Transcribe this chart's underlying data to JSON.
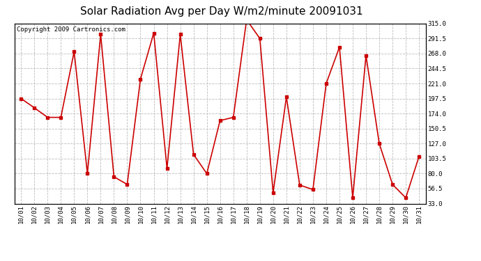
{
  "title": "Solar Radiation Avg per Day W/m2/minute 20091031",
  "copyright": "Copyright 2009 Cartronics.com",
  "dates": [
    "10/01",
    "10/02",
    "10/03",
    "10/04",
    "10/05",
    "10/06",
    "10/07",
    "10/08",
    "10/09",
    "10/10",
    "10/11",
    "10/12",
    "10/13",
    "10/14",
    "10/15",
    "10/16",
    "10/17",
    "10/18",
    "10/19",
    "10/20",
    "10/21",
    "10/22",
    "10/23",
    "10/24",
    "10/25",
    "10/26",
    "10/27",
    "10/28",
    "10/29",
    "10/30",
    "10/31"
  ],
  "values": [
    197.5,
    183.0,
    168.0,
    168.0,
    271.0,
    80.0,
    298.0,
    75.0,
    63.0,
    228.0,
    300.0,
    88.0,
    298.0,
    110.0,
    80.0,
    163.0,
    168.0,
    321.0,
    291.5,
    50.0,
    200.0,
    62.0,
    55.0,
    221.0,
    278.0,
    42.0,
    265.0,
    127.0,
    63.0,
    42.0,
    107.0
  ],
  "line_color": "#cc0000",
  "marker": "s",
  "markersize": 3,
  "bg_color": "#ffffff",
  "grid_color": "#bbbbbb",
  "ylim": [
    33.0,
    315.0
  ],
  "yticks": [
    33.0,
    56.5,
    80.0,
    103.5,
    127.0,
    150.5,
    174.0,
    197.5,
    221.0,
    244.5,
    268.0,
    291.5,
    315.0
  ],
  "title_fontsize": 11,
  "copyright_fontsize": 6.5,
  "tick_fontsize": 6.5
}
